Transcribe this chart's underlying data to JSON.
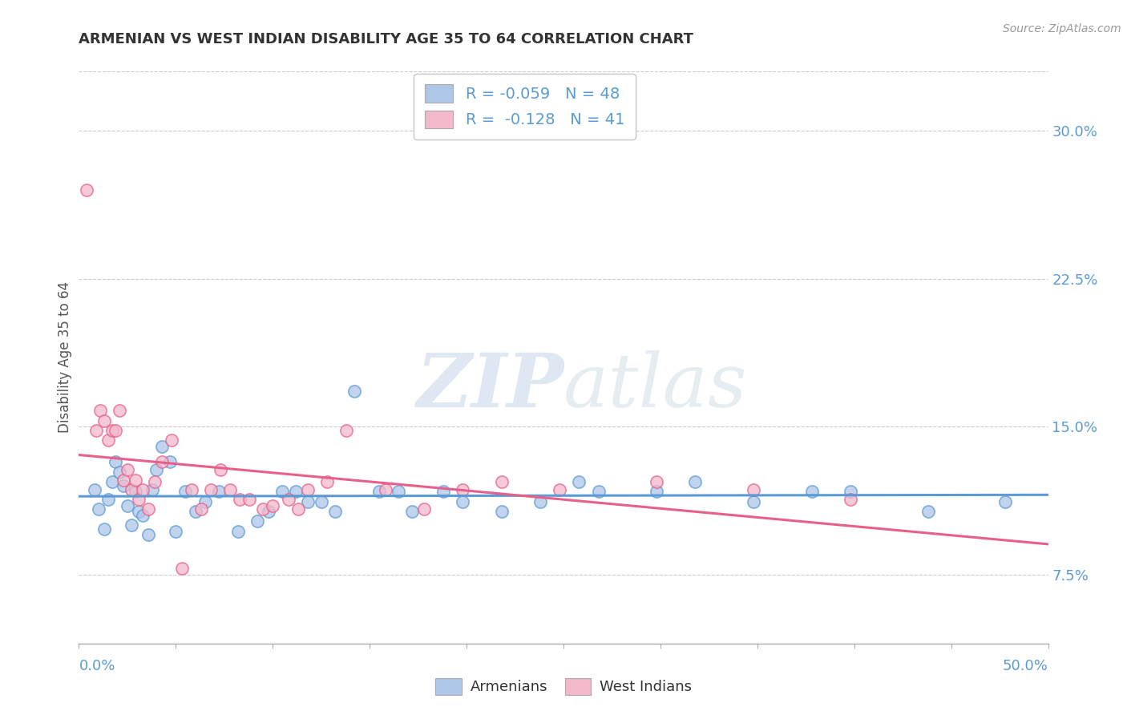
{
  "title": "ARMENIAN VS WEST INDIAN DISABILITY AGE 35 TO 64 CORRELATION CHART",
  "source": "Source: ZipAtlas.com",
  "ylabel": "Disability Age 35 to 64",
  "right_yticks": [
    "30.0%",
    "22.5%",
    "15.0%",
    "7.5%"
  ],
  "right_ytick_vals": [
    0.3,
    0.225,
    0.15,
    0.075
  ],
  "xlim": [
    0.0,
    0.5
  ],
  "ylim": [
    0.04,
    0.33
  ],
  "legend_r1": "R = -0.059   N = 48",
  "legend_r2": "R =  -0.128   N = 41",
  "armenian_color": "#aec6e8",
  "west_indian_color": "#f4b8cb",
  "armenian_line_color": "#5b9bd5",
  "west_indian_line_color": "#e8608a",
  "watermark_zip": "ZIP",
  "watermark_atlas": "atlas",
  "armenian_points": [
    [
      0.008,
      0.118
    ],
    [
      0.01,
      0.108
    ],
    [
      0.013,
      0.098
    ],
    [
      0.015,
      0.113
    ],
    [
      0.017,
      0.122
    ],
    [
      0.019,
      0.132
    ],
    [
      0.021,
      0.127
    ],
    [
      0.023,
      0.12
    ],
    [
      0.025,
      0.11
    ],
    [
      0.027,
      0.1
    ],
    [
      0.029,
      0.117
    ],
    [
      0.031,
      0.107
    ],
    [
      0.033,
      0.105
    ],
    [
      0.036,
      0.095
    ],
    [
      0.038,
      0.118
    ],
    [
      0.04,
      0.128
    ],
    [
      0.043,
      0.14
    ],
    [
      0.047,
      0.132
    ],
    [
      0.05,
      0.097
    ],
    [
      0.055,
      0.117
    ],
    [
      0.06,
      0.107
    ],
    [
      0.065,
      0.112
    ],
    [
      0.072,
      0.117
    ],
    [
      0.082,
      0.097
    ],
    [
      0.092,
      0.102
    ],
    [
      0.098,
      0.107
    ],
    [
      0.105,
      0.117
    ],
    [
      0.112,
      0.117
    ],
    [
      0.118,
      0.112
    ],
    [
      0.125,
      0.112
    ],
    [
      0.132,
      0.107
    ],
    [
      0.142,
      0.168
    ],
    [
      0.155,
      0.117
    ],
    [
      0.165,
      0.117
    ],
    [
      0.172,
      0.107
    ],
    [
      0.188,
      0.117
    ],
    [
      0.198,
      0.112
    ],
    [
      0.218,
      0.107
    ],
    [
      0.238,
      0.112
    ],
    [
      0.258,
      0.122
    ],
    [
      0.268,
      0.117
    ],
    [
      0.298,
      0.117
    ],
    [
      0.318,
      0.122
    ],
    [
      0.348,
      0.112
    ],
    [
      0.378,
      0.117
    ],
    [
      0.398,
      0.117
    ],
    [
      0.438,
      0.107
    ],
    [
      0.478,
      0.112
    ]
  ],
  "west_indian_points": [
    [
      0.004,
      0.27
    ],
    [
      0.009,
      0.148
    ],
    [
      0.011,
      0.158
    ],
    [
      0.013,
      0.153
    ],
    [
      0.015,
      0.143
    ],
    [
      0.017,
      0.148
    ],
    [
      0.019,
      0.148
    ],
    [
      0.021,
      0.158
    ],
    [
      0.023,
      0.123
    ],
    [
      0.025,
      0.128
    ],
    [
      0.027,
      0.118
    ],
    [
      0.029,
      0.123
    ],
    [
      0.031,
      0.113
    ],
    [
      0.033,
      0.118
    ],
    [
      0.036,
      0.108
    ],
    [
      0.039,
      0.122
    ],
    [
      0.043,
      0.132
    ],
    [
      0.048,
      0.143
    ],
    [
      0.053,
      0.078
    ],
    [
      0.058,
      0.118
    ],
    [
      0.063,
      0.108
    ],
    [
      0.068,
      0.118
    ],
    [
      0.073,
      0.128
    ],
    [
      0.078,
      0.118
    ],
    [
      0.083,
      0.113
    ],
    [
      0.088,
      0.113
    ],
    [
      0.095,
      0.108
    ],
    [
      0.1,
      0.11
    ],
    [
      0.108,
      0.113
    ],
    [
      0.113,
      0.108
    ],
    [
      0.118,
      0.118
    ],
    [
      0.128,
      0.122
    ],
    [
      0.138,
      0.148
    ],
    [
      0.158,
      0.118
    ],
    [
      0.178,
      0.108
    ],
    [
      0.198,
      0.118
    ],
    [
      0.218,
      0.122
    ],
    [
      0.248,
      0.118
    ],
    [
      0.298,
      0.122
    ],
    [
      0.348,
      0.118
    ],
    [
      0.398,
      0.113
    ]
  ]
}
